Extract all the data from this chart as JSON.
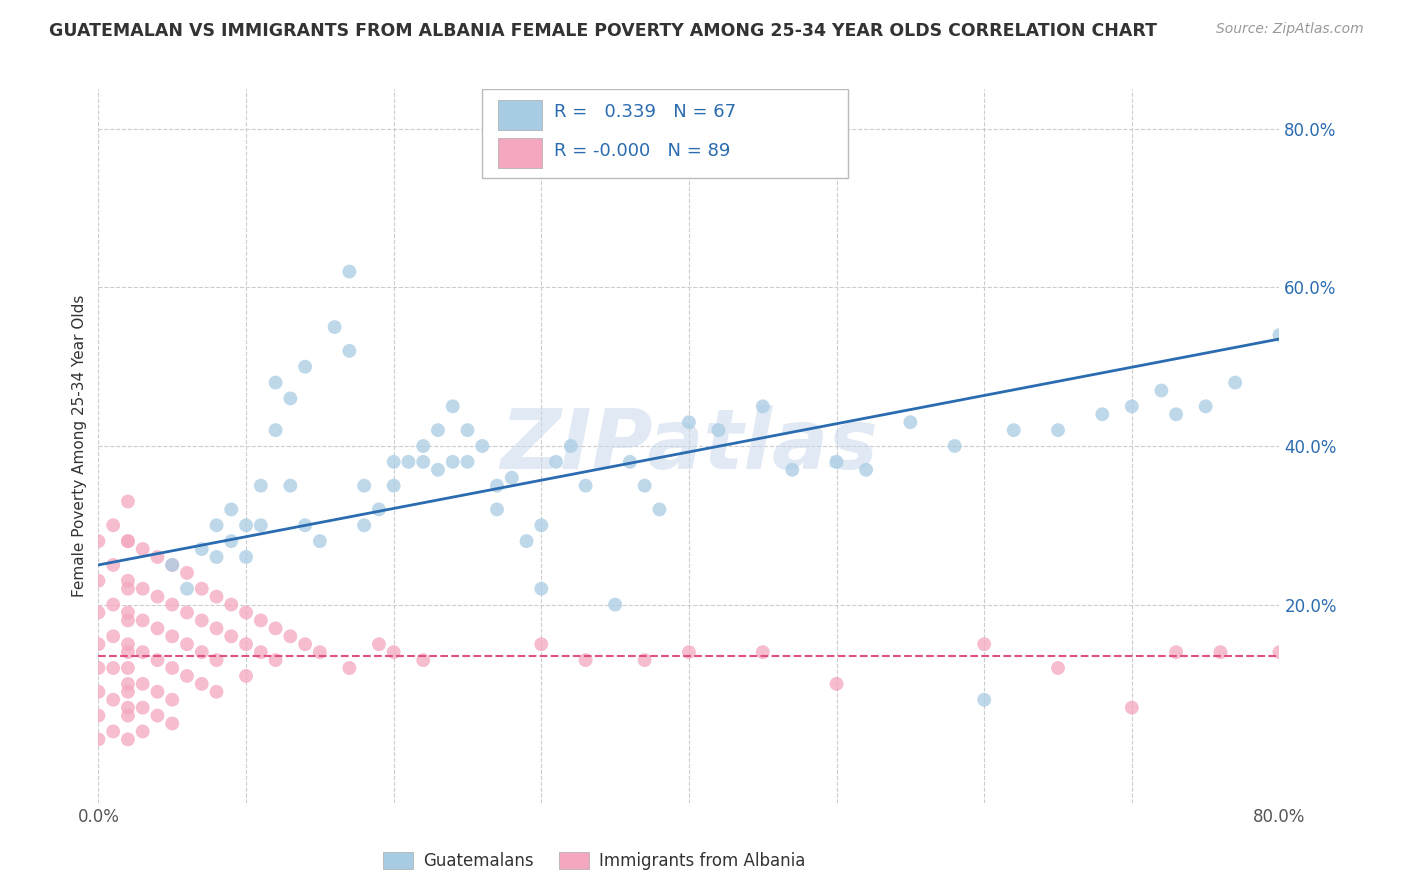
{
  "title": "GUATEMALAN VS IMMIGRANTS FROM ALBANIA FEMALE POVERTY AMONG 25-34 YEAR OLDS CORRELATION CHART",
  "source": "Source: ZipAtlas.com",
  "ylabel": "Female Poverty Among 25-34 Year Olds",
  "xlim": [
    0.0,
    0.8
  ],
  "ylim": [
    -0.05,
    0.85
  ],
  "xticks": [
    0.0,
    0.1,
    0.2,
    0.3,
    0.4,
    0.5,
    0.6,
    0.7,
    0.8
  ],
  "xtick_labels": [
    "0.0%",
    "",
    "",
    "",
    "",
    "",
    "",
    "",
    "80.0%"
  ],
  "ytick_vals_right": [
    0.2,
    0.4,
    0.6,
    0.8
  ],
  "ytick_labels_right": [
    "20.0%",
    "40.0%",
    "60.0%",
    "80.0%"
  ],
  "R_blue": 0.339,
  "N_blue": 67,
  "R_pink": -0.0,
  "N_pink": 89,
  "blue_color": "#a8cce4",
  "pink_color": "#f4a7be",
  "blue_line_color": "#2b6cb0",
  "pink_line_color": "#e05080",
  "text_color_blue": "#2b6cb0",
  "background_color": "#ffffff",
  "grid_color": "#cccccc",
  "watermark": "ZIPatlas",
  "blue_scatter_x": [
    0.05,
    0.06,
    0.07,
    0.08,
    0.08,
    0.09,
    0.09,
    0.1,
    0.1,
    0.11,
    0.11,
    0.12,
    0.12,
    0.13,
    0.13,
    0.14,
    0.14,
    0.15,
    0.16,
    0.17,
    0.17,
    0.18,
    0.18,
    0.19,
    0.2,
    0.2,
    0.21,
    0.22,
    0.22,
    0.23,
    0.23,
    0.24,
    0.24,
    0.25,
    0.25,
    0.26,
    0.27,
    0.27,
    0.28,
    0.29,
    0.3,
    0.3,
    0.31,
    0.32,
    0.33,
    0.35,
    0.36,
    0.37,
    0.38,
    0.4,
    0.42,
    0.45,
    0.47,
    0.5,
    0.52,
    0.55,
    0.58,
    0.6,
    0.62,
    0.65,
    0.68,
    0.7,
    0.72,
    0.73,
    0.75,
    0.77,
    0.8
  ],
  "blue_scatter_y": [
    0.25,
    0.22,
    0.27,
    0.26,
    0.3,
    0.28,
    0.32,
    0.26,
    0.3,
    0.3,
    0.35,
    0.48,
    0.42,
    0.35,
    0.46,
    0.3,
    0.5,
    0.28,
    0.55,
    0.52,
    0.62,
    0.3,
    0.35,
    0.32,
    0.35,
    0.38,
    0.38,
    0.4,
    0.38,
    0.37,
    0.42,
    0.38,
    0.45,
    0.38,
    0.42,
    0.4,
    0.32,
    0.35,
    0.36,
    0.28,
    0.22,
    0.3,
    0.38,
    0.4,
    0.35,
    0.2,
    0.38,
    0.35,
    0.32,
    0.43,
    0.42,
    0.45,
    0.37,
    0.38,
    0.37,
    0.43,
    0.4,
    0.08,
    0.42,
    0.42,
    0.44,
    0.45,
    0.47,
    0.44,
    0.45,
    0.48,
    0.54
  ],
  "pink_scatter_x": [
    0.0,
    0.0,
    0.0,
    0.0,
    0.0,
    0.0,
    0.0,
    0.0,
    0.01,
    0.01,
    0.01,
    0.01,
    0.01,
    0.01,
    0.01,
    0.02,
    0.02,
    0.02,
    0.02,
    0.02,
    0.02,
    0.02,
    0.02,
    0.02,
    0.02,
    0.02,
    0.02,
    0.02,
    0.02,
    0.02,
    0.03,
    0.03,
    0.03,
    0.03,
    0.03,
    0.03,
    0.03,
    0.04,
    0.04,
    0.04,
    0.04,
    0.04,
    0.04,
    0.05,
    0.05,
    0.05,
    0.05,
    0.05,
    0.05,
    0.06,
    0.06,
    0.06,
    0.06,
    0.07,
    0.07,
    0.07,
    0.07,
    0.08,
    0.08,
    0.08,
    0.08,
    0.09,
    0.09,
    0.1,
    0.1,
    0.1,
    0.11,
    0.11,
    0.12,
    0.12,
    0.13,
    0.14,
    0.15,
    0.17,
    0.19,
    0.2,
    0.22,
    0.3,
    0.33,
    0.37,
    0.4,
    0.45,
    0.5,
    0.6,
    0.65,
    0.7,
    0.73,
    0.76,
    0.8
  ],
  "pink_scatter_y": [
    0.28,
    0.23,
    0.19,
    0.15,
    0.12,
    0.09,
    0.06,
    0.03,
    0.3,
    0.25,
    0.2,
    0.16,
    0.12,
    0.08,
    0.04,
    0.33,
    0.28,
    0.23,
    0.19,
    0.15,
    0.12,
    0.09,
    0.06,
    0.03,
    0.28,
    0.22,
    0.18,
    0.14,
    0.1,
    0.07,
    0.27,
    0.22,
    0.18,
    0.14,
    0.1,
    0.07,
    0.04,
    0.26,
    0.21,
    0.17,
    0.13,
    0.09,
    0.06,
    0.25,
    0.2,
    0.16,
    0.12,
    0.08,
    0.05,
    0.24,
    0.19,
    0.15,
    0.11,
    0.22,
    0.18,
    0.14,
    0.1,
    0.21,
    0.17,
    0.13,
    0.09,
    0.2,
    0.16,
    0.19,
    0.15,
    0.11,
    0.18,
    0.14,
    0.17,
    0.13,
    0.16,
    0.15,
    0.14,
    0.12,
    0.15,
    0.14,
    0.13,
    0.15,
    0.13,
    0.13,
    0.14,
    0.14,
    0.1,
    0.15,
    0.12,
    0.07,
    0.14,
    0.14,
    0.14
  ]
}
